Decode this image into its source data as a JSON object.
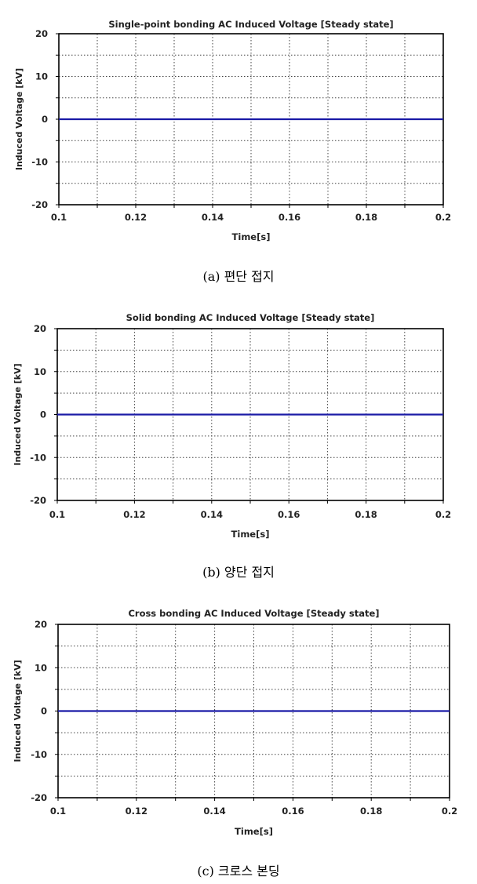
{
  "chart_data": [
    {
      "type": "line",
      "title": "Single-point bonding AC Induced Voltage [Steady state]",
      "xlabel": "Time[s]",
      "ylabel": "Induced Voltage [kV]",
      "xlim": [
        0.1,
        0.2
      ],
      "ylim": [
        -20,
        20
      ],
      "x_ticks": [
        "0.1",
        "0.12",
        "0.14",
        "0.16",
        "0.18",
        "0.2"
      ],
      "y_ticks": [
        "20",
        "10",
        "0",
        "-10",
        "-20"
      ],
      "grid": true,
      "series": [
        {
          "color": "#1a1aa6",
          "x": [
            0.1,
            0.2
          ],
          "y": [
            0,
            0
          ]
        }
      ],
      "caption": "(a) 편단 접지"
    },
    {
      "type": "line",
      "title": "Solid bonding AC Induced Voltage [Steady state]",
      "xlabel": "Time[s]",
      "ylabel": "Induced Voltage [kV]",
      "xlim": [
        0.1,
        0.2
      ],
      "ylim": [
        -20,
        20
      ],
      "x_ticks": [
        "0.1",
        "0.12",
        "0.14",
        "0.16",
        "0.18",
        "0.2"
      ],
      "y_ticks": [
        "20",
        "10",
        "0",
        "-10",
        "-20"
      ],
      "grid": true,
      "series": [
        {
          "color": "#1a1aa6",
          "x": [
            0.1,
            0.2
          ],
          "y": [
            0,
            0
          ]
        }
      ],
      "caption": "(b) 양단 접지"
    },
    {
      "type": "line",
      "title": "Cross bonding AC Induced Voltage [Steady state]",
      "xlabel": "Time[s]",
      "ylabel": "Induced Voltage [kV]",
      "xlim": [
        0.1,
        0.2
      ],
      "ylim": [
        -20,
        20
      ],
      "x_ticks": [
        "0.1",
        "0.12",
        "0.14",
        "0.16",
        "0.18",
        "0.2"
      ],
      "y_ticks": [
        "20",
        "10",
        "0",
        "-10",
        "-20"
      ],
      "grid": true,
      "series": [
        {
          "color": "#1a1aa6",
          "x": [
            0.1,
            0.2
          ],
          "y": [
            0,
            0
          ]
        }
      ],
      "caption": "(c) 크로스 본딩"
    }
  ]
}
